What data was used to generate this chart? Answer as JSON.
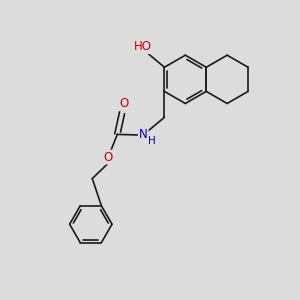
{
  "background_color": "#dcdcdc",
  "bond_color": "#1a1a1a",
  "atom_colors": {
    "O": "#cc0000",
    "N": "#0000bb",
    "C": "#1a1a1a"
  },
  "figsize": [
    3.0,
    3.0
  ],
  "dpi": 100,
  "font_size_atoms": 8.5,
  "font_size_H": 7.5,
  "lw": 1.2
}
